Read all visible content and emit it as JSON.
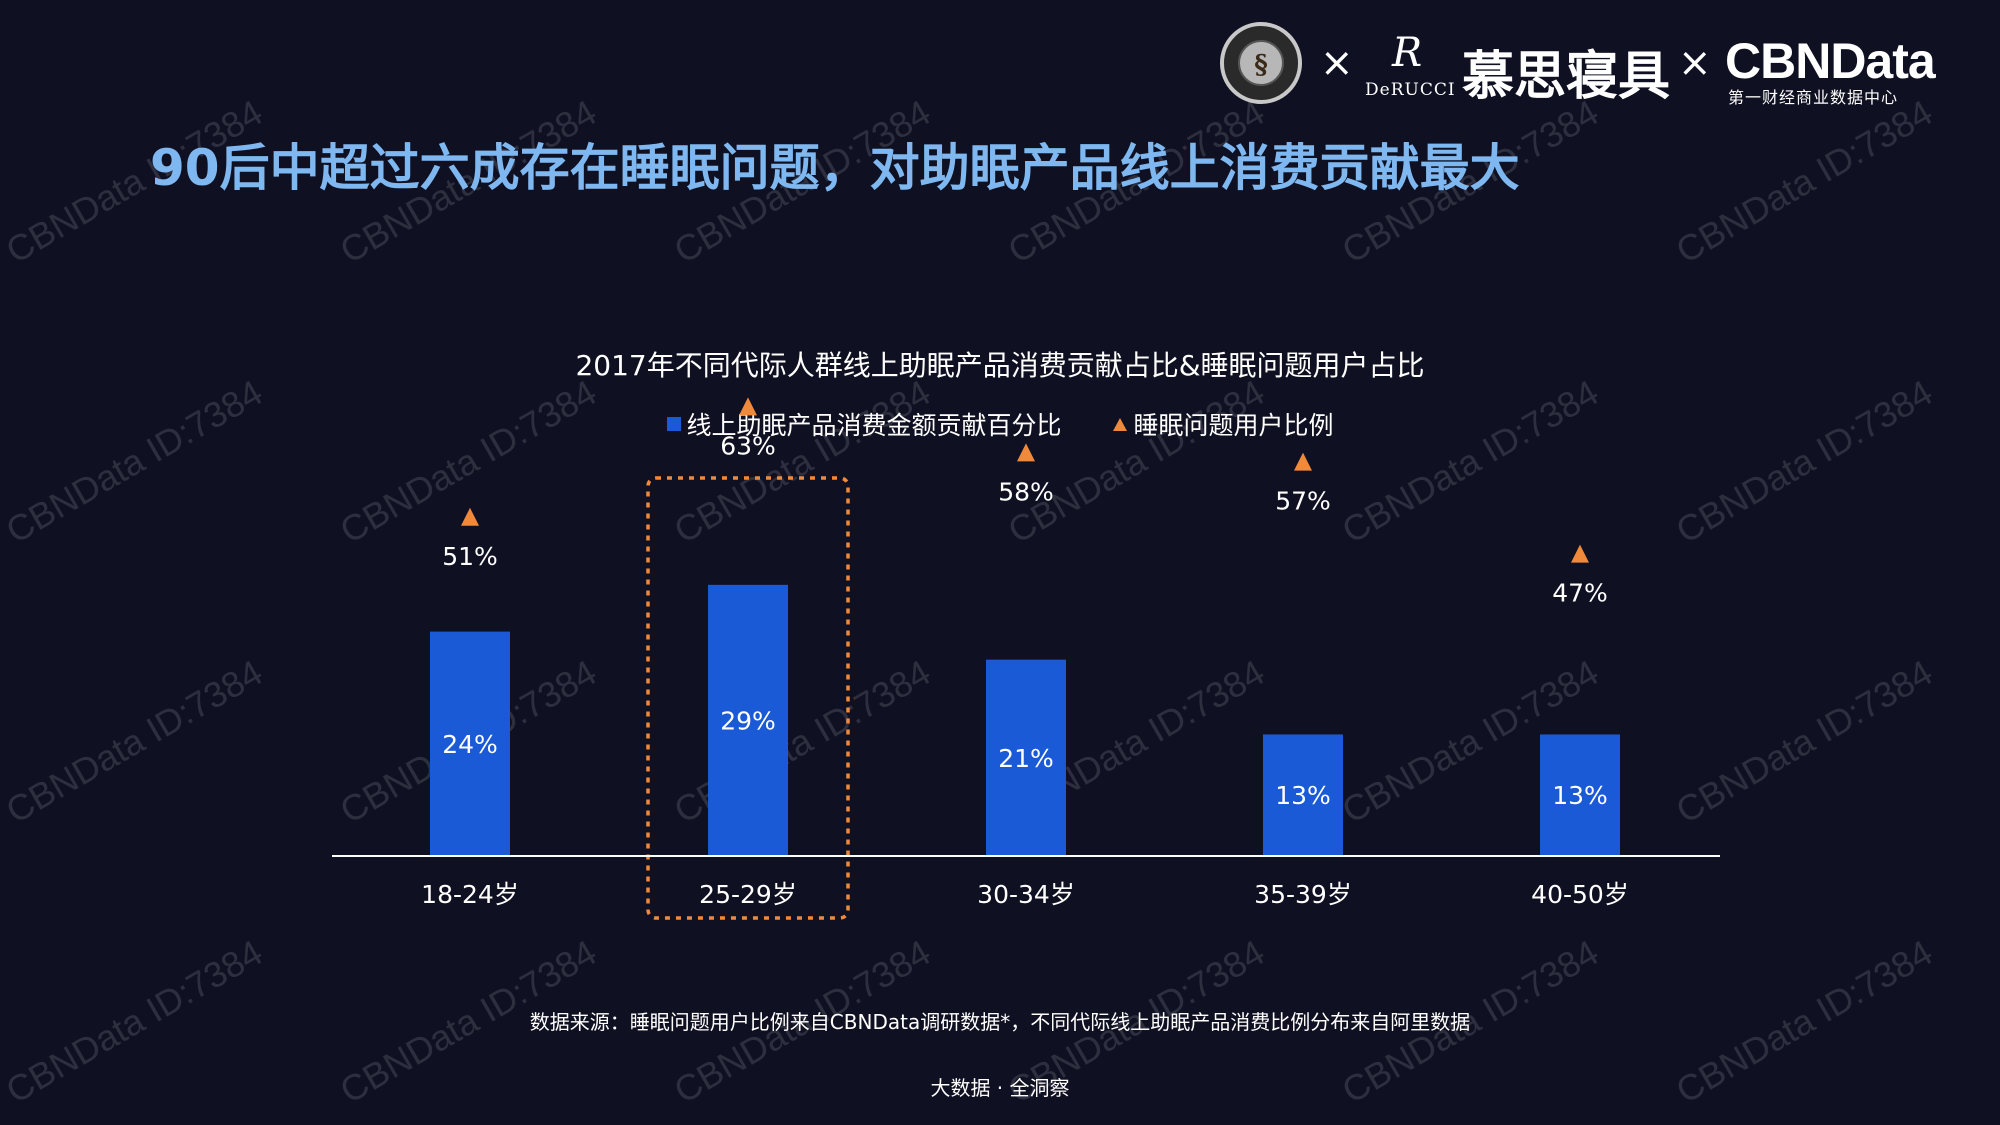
{
  "header": {
    "title": "90后中超过六成存在睡眠问题，对助眠产品线上消费贡献最大"
  },
  "logos": {
    "separator": "×",
    "derucci_mark": "R",
    "derucci_name": "DeRUCCI",
    "brand_cn": "慕思寝具",
    "cbndata": "CBNData",
    "cbndata_sub": "第一财经商业数据中心",
    "icons": [
      "sleep-research-society-seal-icon"
    ]
  },
  "chart_data": {
    "type": "bar",
    "title": "2017年不同代际人群线上助眠产品消费贡献占比&睡眠问题用户占比",
    "categories": [
      "18-24岁",
      "25-29岁",
      "30-34岁",
      "35-39岁",
      "40-50岁"
    ],
    "series": [
      {
        "name": "线上助眠产品消费金额贡献百分比",
        "type": "bar",
        "values": [
          24,
          29,
          21,
          13,
          13
        ],
        "labels": [
          "24%",
          "29%",
          "21%",
          "13%",
          "13%"
        ],
        "color": "#1a5ad6"
      },
      {
        "name": "睡眠问题用户比例",
        "type": "scatter",
        "marker": "triangle",
        "values": [
          51,
          63,
          58,
          57,
          47
        ],
        "labels": [
          "51%",
          "63%",
          "58%",
          "57%",
          "47%"
        ],
        "color": "#f0893a"
      }
    ],
    "highlight_category": "25-29岁",
    "highlight_color": "#f0893a",
    "legend_position": "top-center",
    "grid": false
  },
  "source_note": "数据来源：睡眠问题用户比例来自CBNData调研数据*，不同代际线上助眠产品消费比例分布来自阿里数据",
  "footer": "大数据 · 全洞察",
  "watermark": "CBNData ID:7384",
  "colors": {
    "background": "#0f1122",
    "title": "#7fb8f0",
    "bar": "#1a5ad6",
    "marker": "#f0893a"
  }
}
